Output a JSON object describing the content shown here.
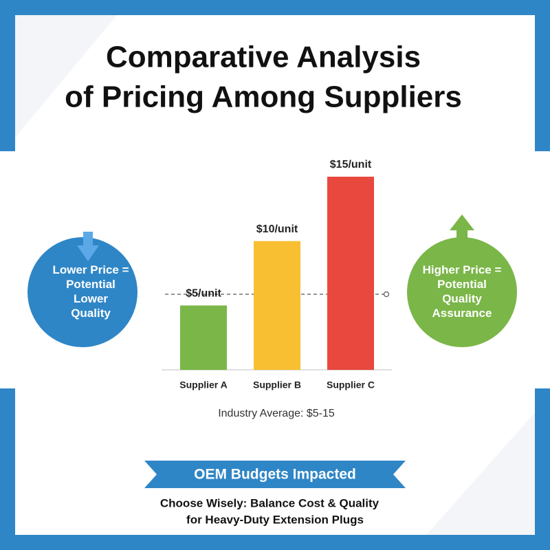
{
  "chart_data": {
    "type": "bar",
    "title_lines": [
      "Comparative Analysis",
      "of Pricing Among Suppliers"
    ],
    "categories": [
      "Supplier A",
      "Supplier B",
      "Supplier C"
    ],
    "values": [
      5,
      10,
      15
    ],
    "value_labels": [
      "$5/unit",
      "$10/unit",
      "$15/unit"
    ],
    "colors": [
      "#7ab648",
      "#f8bf32",
      "#e8483d"
    ],
    "caption": "Industry Average: $5-15",
    "left_note": [
      "Lower Price =",
      "Potential",
      "Lower",
      "Quality"
    ],
    "right_note": [
      "Higher Price =",
      "Potential",
      "Quality",
      "Assurance"
    ],
    "banner": "OEM Budgets Impacted",
    "footer_lines": [
      "Choose Wisely: Balance Cost & Quality",
      "for Heavy-Duty Extension Plugs"
    ]
  }
}
